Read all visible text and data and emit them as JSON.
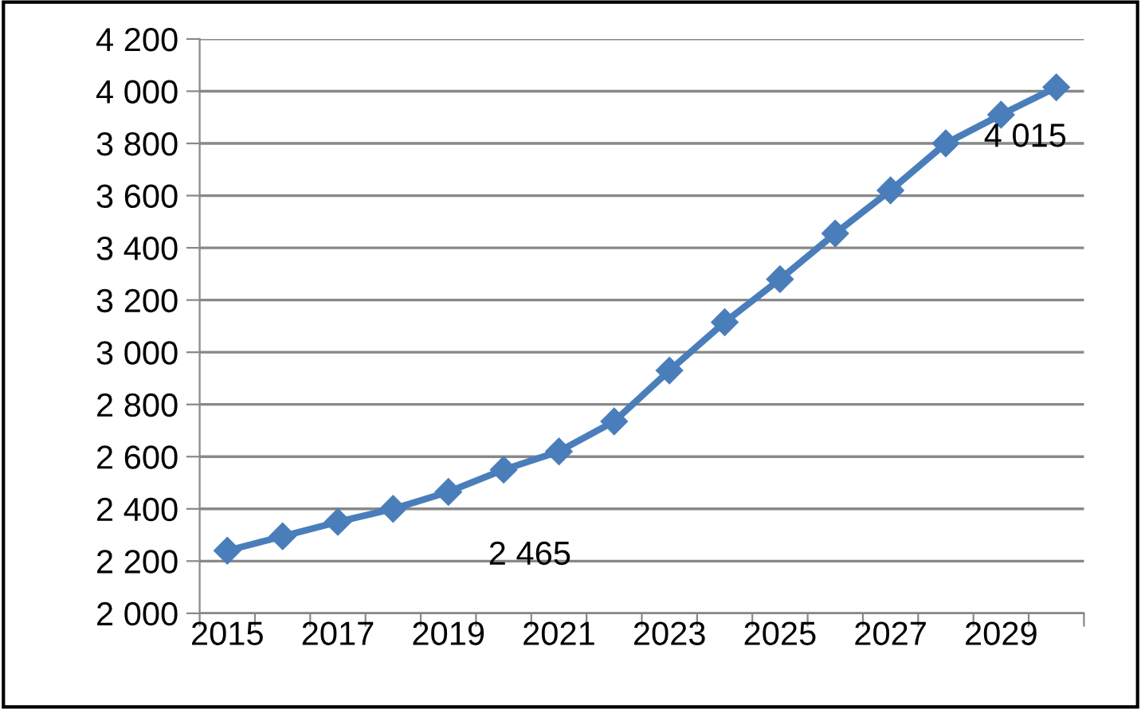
{
  "chart_data": {
    "type": "line",
    "categories": [
      "2015",
      null,
      "2017",
      null,
      "2019",
      null,
      "2021",
      null,
      "2023",
      null,
      "2025",
      null,
      "2027",
      null,
      "2029",
      null
    ],
    "series": [
      {
        "color": "#4a7ebb",
        "values": [
          2240,
          2295,
          2350,
          2400,
          2465,
          2550,
          2620,
          2735,
          2930,
          3115,
          3280,
          3455,
          3620,
          3800,
          3910,
          4015
        ],
        "value_labels": [
          null,
          null,
          null,
          null,
          "2 465",
          null,
          null,
          null,
          null,
          null,
          null,
          null,
          null,
          null,
          null,
          "4 015"
        ]
      }
    ],
    "ylim": [
      2000,
      4200
    ],
    "yticks": [
      {
        "value": 2000,
        "label": "2 000"
      },
      {
        "value": 2200,
        "label": "2 200"
      },
      {
        "value": 2400,
        "label": "2 400"
      },
      {
        "value": 2600,
        "label": "2 600"
      },
      {
        "value": 2800,
        "label": "2 800"
      },
      {
        "value": 3000,
        "label": "3 000"
      },
      {
        "value": 3200,
        "label": "3 200"
      },
      {
        "value": 3400,
        "label": "3 400"
      },
      {
        "value": 3600,
        "label": "3 600"
      },
      {
        "value": 3800,
        "label": "3 800"
      },
      {
        "value": 4000,
        "label": "4 000"
      },
      {
        "value": 4200,
        "label": "4 200"
      }
    ],
    "grid": "y",
    "marker": "diamond",
    "line_style": "solid",
    "legend": false
  }
}
